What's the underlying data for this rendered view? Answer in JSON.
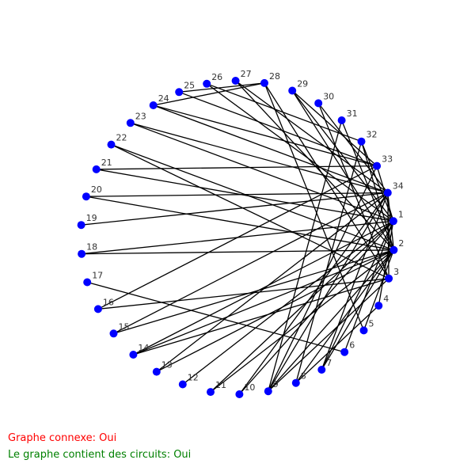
{
  "graph": {
    "vertex_count": 34,
    "node_color": "#0000ff",
    "edge_color": "#000000",
    "edges": [
      [
        24,
        28
      ],
      [
        24,
        33
      ],
      [
        24,
        34
      ],
      [
        25,
        28
      ],
      [
        25,
        33
      ],
      [
        26,
        32
      ],
      [
        27,
        34
      ],
      [
        28,
        3
      ],
      [
        28,
        5
      ],
      [
        29,
        33
      ],
      [
        29,
        2
      ],
      [
        30,
        34
      ],
      [
        23,
        34
      ],
      [
        22,
        2
      ],
      [
        21,
        33
      ],
      [
        20,
        34
      ],
      [
        20,
        2
      ],
      [
        19,
        34
      ],
      [
        18,
        1
      ],
      [
        17,
        6
      ],
      [
        16,
        33
      ],
      [
        15,
        34
      ],
      [
        14,
        1
      ],
      [
        14,
        2
      ],
      [
        13,
        34
      ],
      [
        12,
        1
      ],
      [
        11,
        2
      ],
      [
        10,
        1
      ],
      [
        9,
        33
      ],
      [
        9,
        31
      ],
      [
        9,
        2
      ],
      [
        9,
        3
      ],
      [
        8,
        2
      ],
      [
        8,
        4
      ],
      [
        8,
        32
      ],
      [
        7,
        1
      ],
      [
        7,
        2
      ],
      [
        7,
        34
      ],
      [
        6,
        1
      ],
      [
        5,
        2
      ],
      [
        4,
        1
      ],
      [
        3,
        34
      ],
      [
        1,
        33
      ],
      [
        1,
        32
      ],
      [
        2,
        32
      ],
      [
        31,
        2
      ],
      [
        30,
        3
      ],
      [
        27,
        2
      ],
      [
        26,
        1
      ],
      [
        22,
        3
      ],
      [
        21,
        1
      ],
      [
        18,
        2
      ],
      [
        16,
        3
      ],
      [
        15,
        2
      ],
      [
        14,
        3
      ],
      [
        13,
        2
      ],
      [
        11,
        1
      ],
      [
        10,
        34
      ],
      [
        9,
        34
      ],
      [
        23,
        1
      ],
      [
        29,
        1
      ],
      [
        34,
        2
      ]
    ]
  },
  "status": {
    "connexe": "Graphe connexe: Oui",
    "connexe_color": "#ff0000",
    "circuits": "Le graphe contient des circuits: Oui",
    "circuits_color": "#008000"
  }
}
